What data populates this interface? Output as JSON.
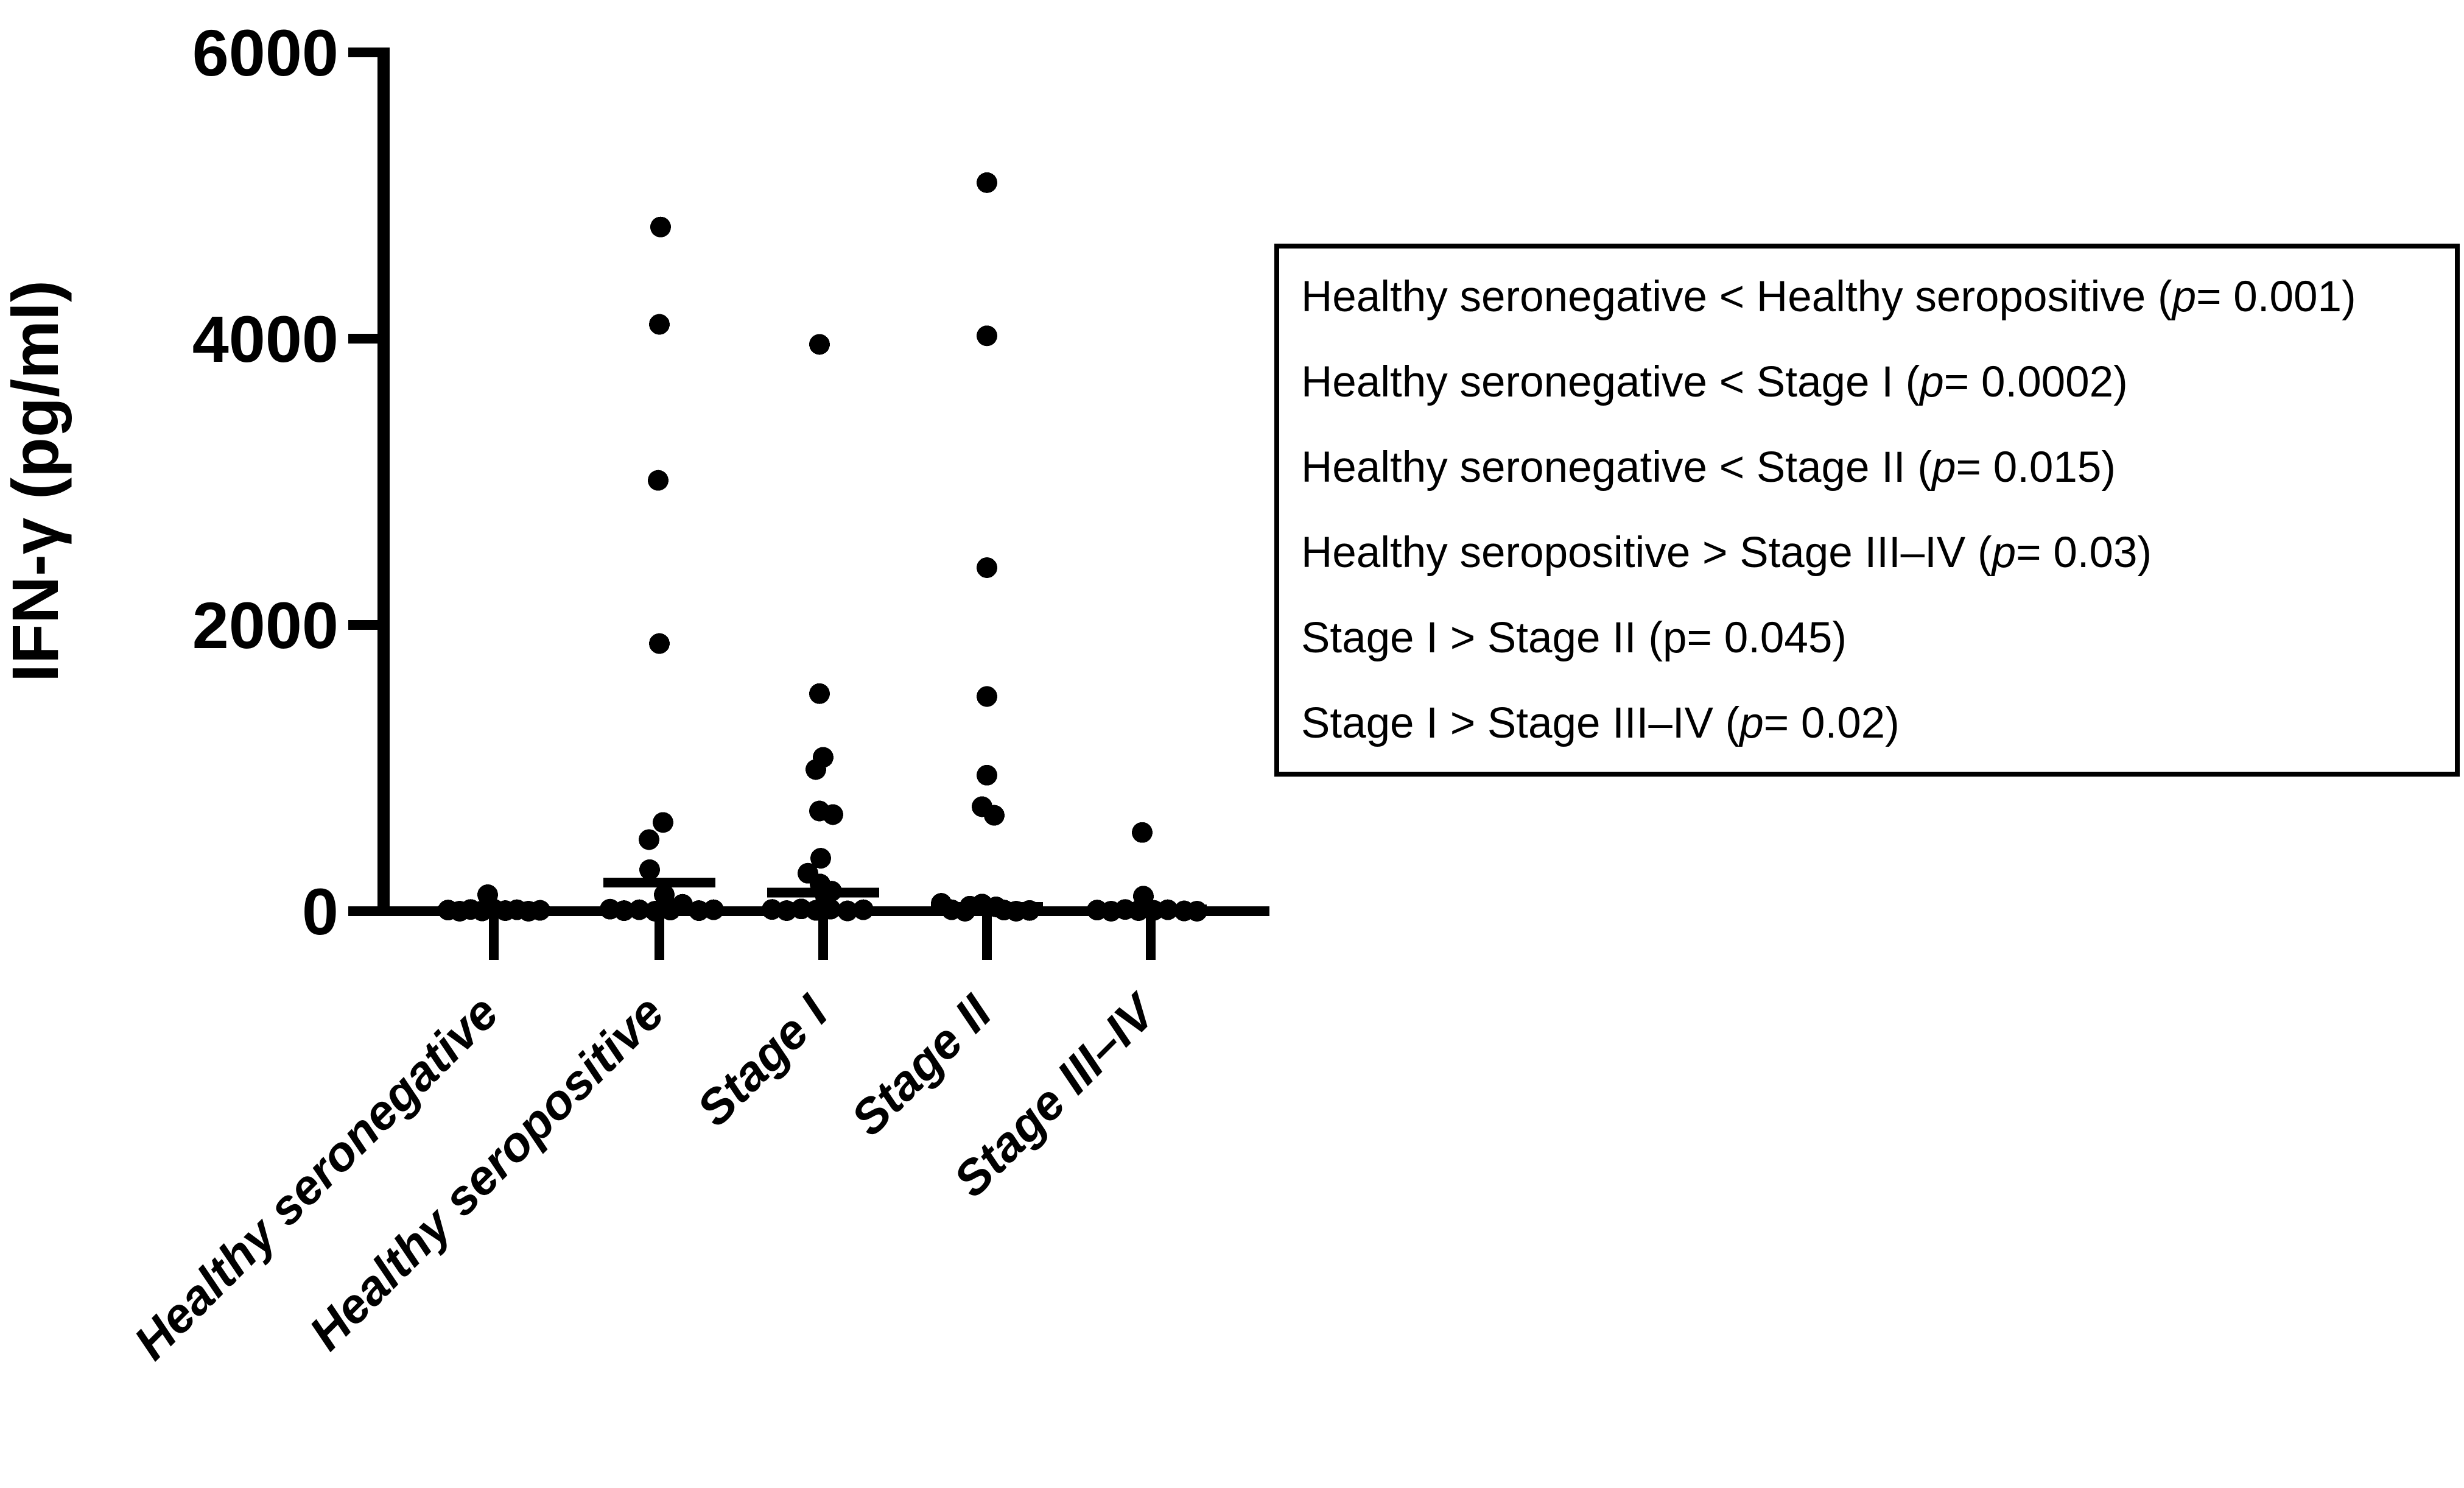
{
  "page": {
    "background": "#ffffff",
    "ink": "#000000"
  },
  "chart_data": {
    "type": "scatter",
    "title": "",
    "xlabel": "",
    "ylabel": "IFN-γ (pg/ml)",
    "ylim": [
      0,
      6000
    ],
    "ytick_labels": [
      "0",
      "2000",
      "4000",
      "6000"
    ],
    "grid": false,
    "legend_position": "right",
    "categories": [
      "Healthy seronegative",
      "Healthy seropositive",
      "Stage I",
      "Stage II",
      "Stage III–IV"
    ],
    "series": [
      {
        "name": "Healthy seronegative",
        "median": 5,
        "points": [
          [
            8,
            -75
          ],
          [
            0,
            -56
          ],
          [
            12,
            -38
          ],
          [
            2,
            -19
          ],
          [
            14,
            0
          ],
          [
            4,
            19
          ],
          [
            10,
            38
          ],
          [
            0,
            57
          ],
          [
            6,
            76
          ],
          [
            115,
            -10
          ]
        ]
      },
      {
        "name": "Healthy seropositive",
        "median": 200,
        "points": [
          [
            4780,
            2
          ],
          [
            4100,
            0
          ],
          [
            3010,
            -2
          ],
          [
            1870,
            0
          ],
          [
            620,
            6
          ],
          [
            500,
            -17
          ],
          [
            290,
            -16
          ],
          [
            115,
            8
          ],
          [
            48,
            38
          ],
          [
            14,
            -81
          ],
          [
            4,
            -58
          ],
          [
            10,
            -33
          ],
          [
            0,
            -7
          ],
          [
            8,
            18
          ],
          [
            4,
            65
          ],
          [
            10,
            89
          ]
        ]
      },
      {
        "name": "Stage I",
        "median": 130,
        "points": [
          [
            3960,
            -6
          ],
          [
            1520,
            -6
          ],
          [
            1075,
            0
          ],
          [
            990,
            -12
          ],
          [
            700,
            -6
          ],
          [
            675,
            16
          ],
          [
            370,
            -4
          ],
          [
            265,
            -25
          ],
          [
            190,
            -5
          ],
          [
            140,
            14
          ],
          [
            100,
            4
          ],
          [
            12,
            -84
          ],
          [
            4,
            -60
          ],
          [
            16,
            -36
          ],
          [
            6,
            -12
          ],
          [
            14,
            12
          ],
          [
            2,
            40
          ],
          [
            10,
            66
          ]
        ]
      },
      {
        "name": "Stage II",
        "median": 30,
        "points": [
          [
            5090,
            0
          ],
          [
            4020,
            0
          ],
          [
            2400,
            0
          ],
          [
            1500,
            0
          ],
          [
            950,
            0
          ],
          [
            730,
            -8
          ],
          [
            670,
            12
          ],
          [
            55,
            -75
          ],
          [
            10,
            -58
          ],
          [
            0,
            -36
          ],
          [
            35,
            -28
          ],
          [
            50,
            -8
          ],
          [
            30,
            15
          ],
          [
            8,
            28
          ],
          [
            0,
            48
          ],
          [
            5,
            70
          ]
        ]
      },
      {
        "name": "Stage III–IV",
        "median": 12,
        "points": [
          [
            550,
            -14
          ],
          [
            105,
            -12
          ],
          [
            8,
            -88
          ],
          [
            0,
            -65
          ],
          [
            12,
            -42
          ],
          [
            4,
            -20
          ],
          [
            6,
            5
          ],
          [
            10,
            28
          ],
          [
            2,
            55
          ],
          [
            0,
            76
          ]
        ]
      }
    ],
    "annotations": [
      "Healthy seronegative < Healthy seropositive (p= 0.001)",
      "Healthy seronegative < Stage I (p= 0.0002)",
      "Healthy seronegative < Stage II (p= 0.015)",
      "Healthy seropositive > Stage III–IV (p= 0.03)",
      "Stage I > Stage II (p= 0.045)",
      "Stage I > Stage III–IV (p= 0.02)"
    ]
  },
  "legend": {
    "lines": [
      {
        "before": "Healthy seronegative < Healthy seropositive (",
        "p": "p",
        "after": "= 0.001)",
        "italic_p": true
      },
      {
        "before": "Healthy seronegative < Stage I (",
        "p": "p",
        "after": "= 0.0002)",
        "italic_p": true
      },
      {
        "before": "Healthy seronegative < Stage II (",
        "p": "p",
        "after": "= 0.015)",
        "italic_p": true
      },
      {
        "before": "Healthy seropositive > Stage III–IV (",
        "p": "p",
        "after": "= 0.03)",
        "italic_p": true
      },
      {
        "before": "Stage I > Stage II (",
        "p": "p",
        "after": "= 0.045)",
        "italic_p": false
      },
      {
        "before": "Stage I > Stage III–IV (",
        "p": "p",
        "after": "= 0.02)",
        "italic_p": true
      }
    ]
  }
}
